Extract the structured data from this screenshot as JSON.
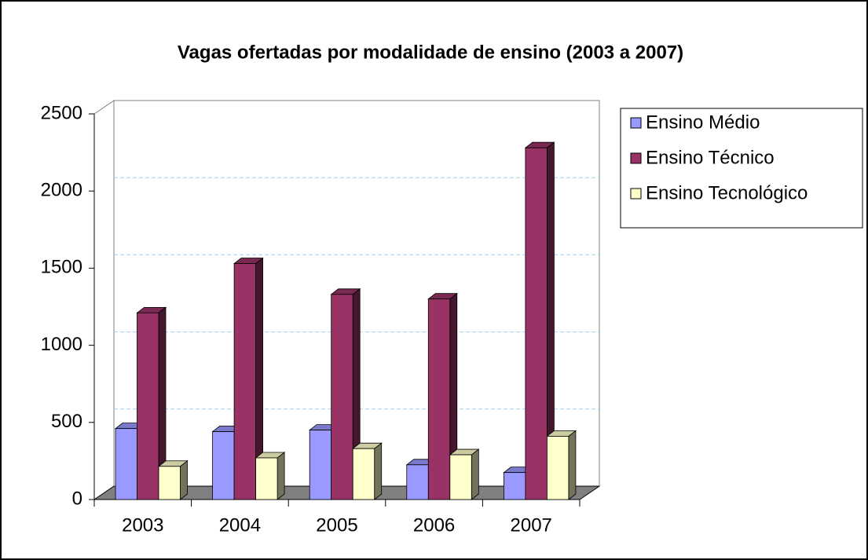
{
  "chart_data": {
    "type": "bar3d",
    "title": "Vagas ofertadas por modalidade de ensino (2003 a 2007)",
    "categories": [
      "2003",
      "2004",
      "2005",
      "2006",
      "2007"
    ],
    "series": [
      {
        "name": "Ensino Médio",
        "color": "#9999ff",
        "values": [
          460,
          440,
          450,
          225,
          175
        ]
      },
      {
        "name": "Ensino Técnico",
        "color": "#993366",
        "values": [
          1210,
          1530,
          1330,
          1300,
          2280
        ]
      },
      {
        "name": "Ensino Tecnológico",
        "color": "#ffffcc",
        "values": [
          215,
          270,
          330,
          290,
          410
        ]
      }
    ],
    "ylim": [
      0,
      2500
    ],
    "yticks": [
      0,
      500,
      1000,
      1500,
      2000,
      2500
    ],
    "grid": true,
    "legend": "right"
  }
}
